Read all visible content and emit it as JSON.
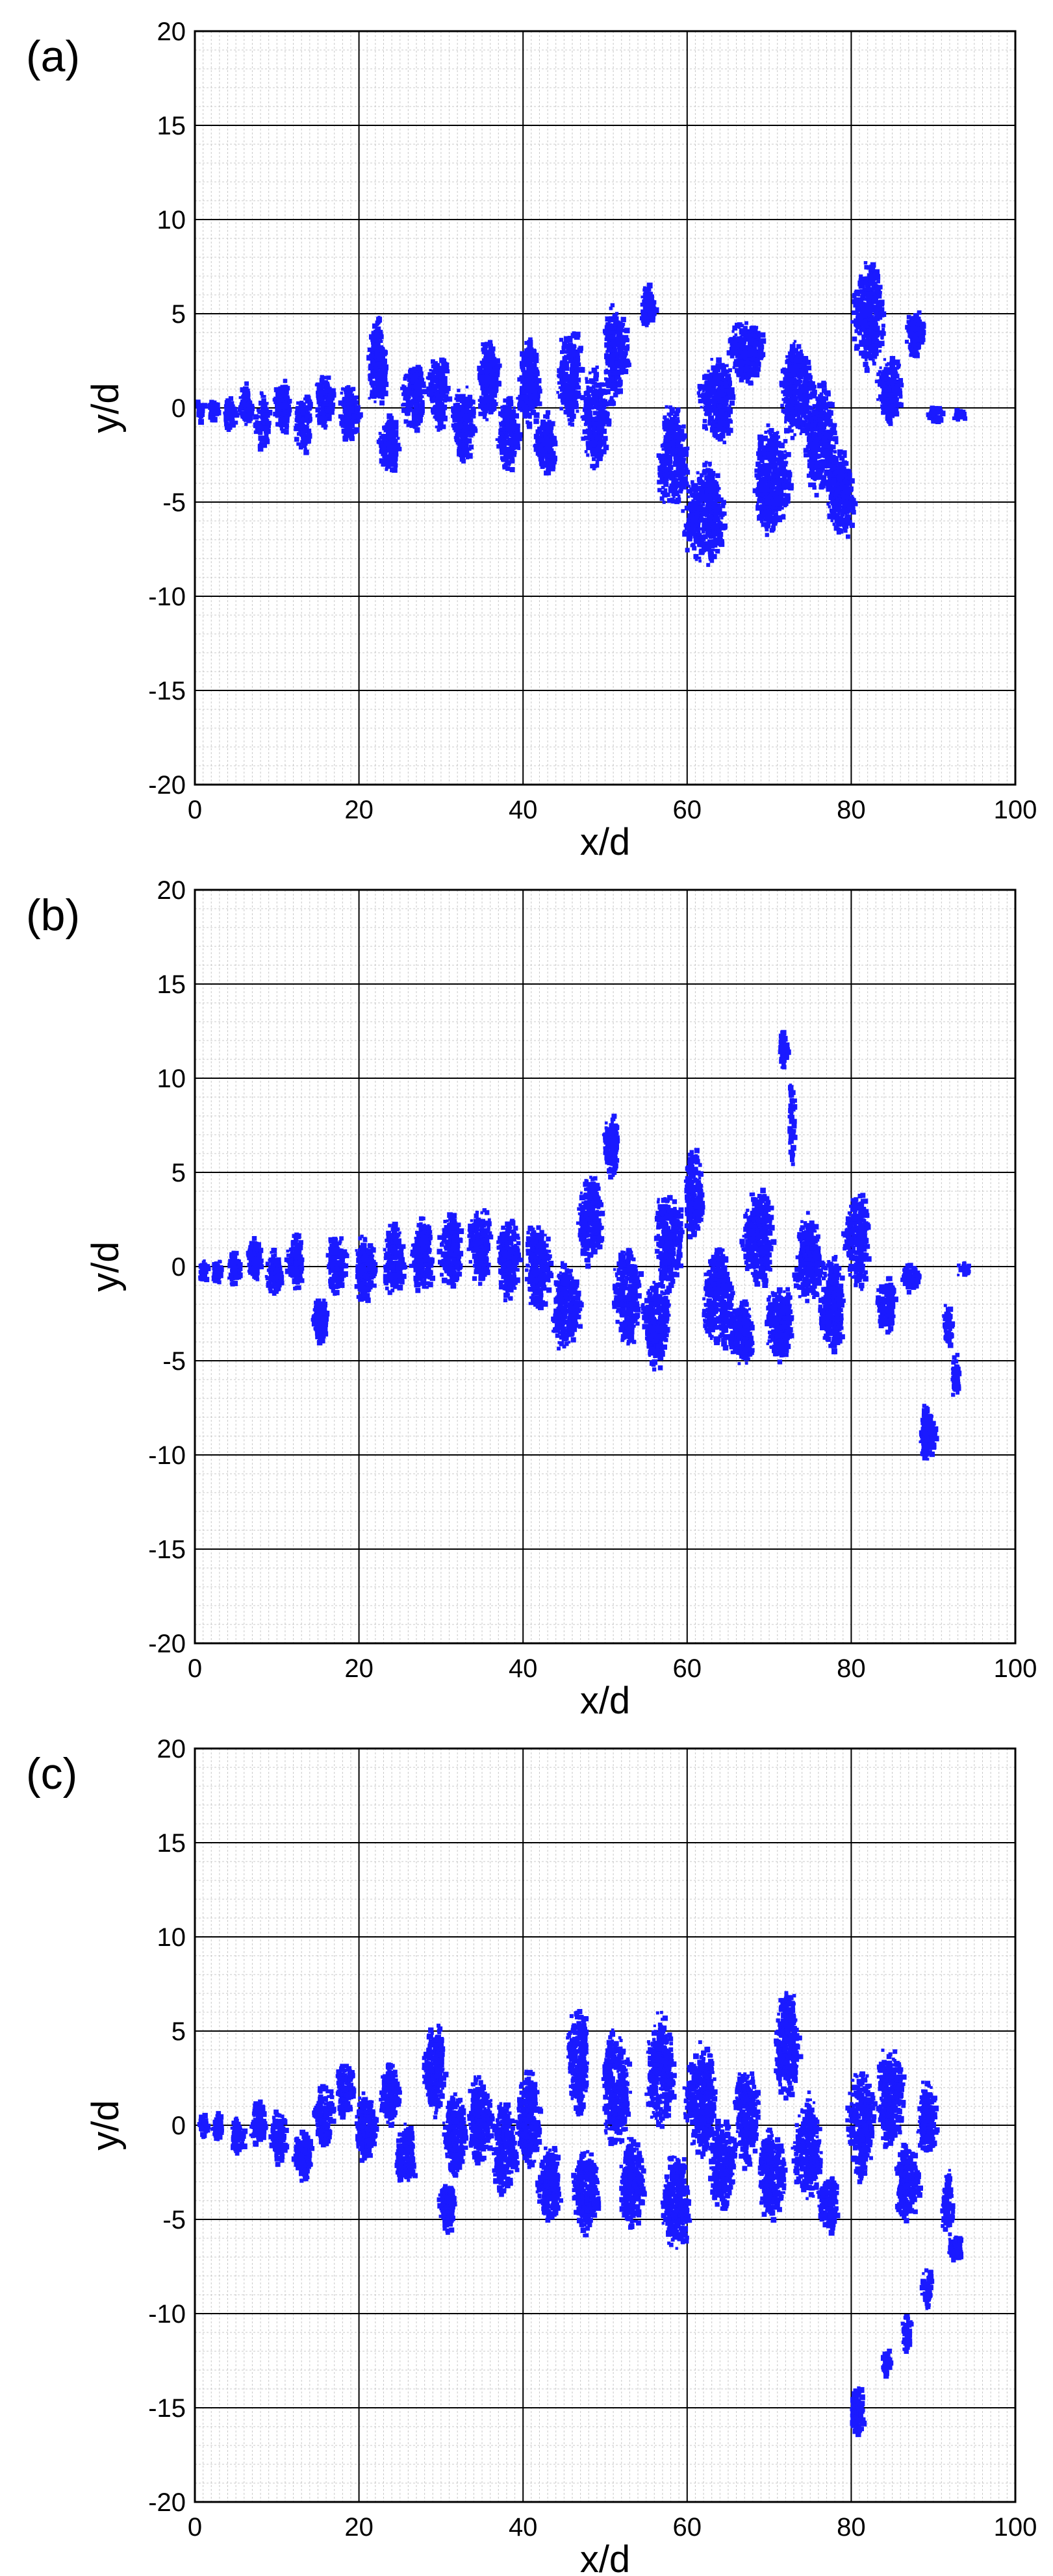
{
  "figure": {
    "panels": [
      {
        "id": "a",
        "label": "(a)",
        "seed": 11
      },
      {
        "id": "b",
        "label": "(b)",
        "seed": 23
      },
      {
        "id": "c",
        "label": "(c)",
        "seed": 37
      }
    ]
  },
  "colors": {
    "particles": "#1a1aff",
    "major_grid": "#000000",
    "minor_grid": "#c8c8c8",
    "frame": "#000000",
    "background": "#ffffff"
  },
  "chart_data": [
    {
      "type": "scatter",
      "panel": "(a)",
      "title": "",
      "xlabel": "x/d",
      "ylabel": "y/d",
      "xlim": [
        0,
        100
      ],
      "ylim": [
        -20,
        20
      ],
      "xticks": [
        0,
        20,
        40,
        60,
        80,
        100
      ],
      "yticks": [
        -20,
        -15,
        -10,
        -5,
        0,
        5,
        10,
        15,
        20
      ],
      "grid": true,
      "legend": "none",
      "clusters": [
        {
          "x": 0.5,
          "y": 0.0,
          "rx": 0.5,
          "ry": 0.7,
          "n": 40
        },
        {
          "x": 2.0,
          "y": 0.0,
          "rx": 0.7,
          "ry": 0.7,
          "n": 60
        },
        {
          "x": 4.0,
          "y": -0.3,
          "rx": 0.8,
          "ry": 1.0,
          "n": 80
        },
        {
          "x": 6.0,
          "y": 0.3,
          "rx": 0.9,
          "ry": 1.2,
          "n": 90
        },
        {
          "x": 8.0,
          "y": -0.6,
          "rx": 1.0,
          "ry": 1.6,
          "n": 110
        },
        {
          "x": 10.5,
          "y": 0.2,
          "rx": 1.0,
          "ry": 1.6,
          "n": 140
        },
        {
          "x": 13.0,
          "y": -0.8,
          "rx": 1.1,
          "ry": 1.7,
          "n": 160
        },
        {
          "x": 15.5,
          "y": 0.4,
          "rx": 1.2,
          "ry": 1.6,
          "n": 170
        },
        {
          "x": 18.5,
          "y": -0.2,
          "rx": 1.3,
          "ry": 1.6,
          "n": 170
        },
        {
          "x": 22.0,
          "y": 2.5,
          "rx": 1.2,
          "ry": 2.6,
          "n": 240
        },
        {
          "x": 23.5,
          "y": -1.8,
          "rx": 1.4,
          "ry": 1.6,
          "n": 200
        },
        {
          "x": 26.5,
          "y": 0.8,
          "rx": 1.5,
          "ry": 2.2,
          "n": 240
        },
        {
          "x": 29.5,
          "y": 1.0,
          "rx": 1.4,
          "ry": 2.2,
          "n": 230
        },
        {
          "x": 32.5,
          "y": -0.8,
          "rx": 1.6,
          "ry": 2.2,
          "n": 270
        },
        {
          "x": 35.5,
          "y": 1.5,
          "rx": 1.4,
          "ry": 2.4,
          "n": 250
        },
        {
          "x": 38.0,
          "y": -1.2,
          "rx": 1.5,
          "ry": 2.2,
          "n": 260
        },
        {
          "x": 40.5,
          "y": 1.5,
          "rx": 1.5,
          "ry": 2.6,
          "n": 280
        },
        {
          "x": 42.5,
          "y": -1.8,
          "rx": 1.3,
          "ry": 1.8,
          "n": 220
        },
        {
          "x": 45.5,
          "y": 1.8,
          "rx": 1.6,
          "ry": 2.8,
          "n": 300
        },
        {
          "x": 48.5,
          "y": -0.5,
          "rx": 1.8,
          "ry": 2.8,
          "n": 320
        },
        {
          "x": 51.0,
          "y": 3.0,
          "rx": 1.6,
          "ry": 2.8,
          "n": 310
        },
        {
          "x": 55.0,
          "y": 5.5,
          "rx": 1.0,
          "ry": 1.2,
          "n": 150
        },
        {
          "x": 58.0,
          "y": -2.5,
          "rx": 2.0,
          "ry": 3.0,
          "n": 380
        },
        {
          "x": 62.0,
          "y": -5.5,
          "rx": 2.8,
          "ry": 3.0,
          "n": 560
        },
        {
          "x": 63.5,
          "y": 0.5,
          "rx": 2.2,
          "ry": 2.5,
          "n": 380
        },
        {
          "x": 67.0,
          "y": 3.0,
          "rx": 2.2,
          "ry": 1.8,
          "n": 360
        },
        {
          "x": 70.0,
          "y": -3.8,
          "rx": 2.4,
          "ry": 3.2,
          "n": 520
        },
        {
          "x": 73.0,
          "y": 1.0,
          "rx": 2.2,
          "ry": 2.8,
          "n": 430
        },
        {
          "x": 76.0,
          "y": -1.5,
          "rx": 2.0,
          "ry": 3.2,
          "n": 430
        },
        {
          "x": 78.5,
          "y": -4.5,
          "rx": 1.8,
          "ry": 2.5,
          "n": 330
        },
        {
          "x": 82.0,
          "y": 5.0,
          "rx": 2.0,
          "ry": 3.2,
          "n": 400
        },
        {
          "x": 84.5,
          "y": 1.0,
          "rx": 1.6,
          "ry": 2.0,
          "n": 260
        },
        {
          "x": 87.5,
          "y": 4.0,
          "rx": 1.2,
          "ry": 1.4,
          "n": 170
        },
        {
          "x": 90.0,
          "y": -0.2,
          "rx": 1.0,
          "ry": 0.5,
          "n": 40
        },
        {
          "x": 93.0,
          "y": -0.3,
          "rx": 1.0,
          "ry": 0.4,
          "n": 20
        }
      ]
    },
    {
      "type": "scatter",
      "panel": "(b)",
      "title": "",
      "xlabel": "x/d",
      "ylabel": "y/d",
      "xlim": [
        0,
        100
      ],
      "ylim": [
        -20,
        20
      ],
      "xticks": [
        0,
        20,
        40,
        60,
        80,
        100
      ],
      "yticks": [
        -20,
        -15,
        -10,
        -5,
        0,
        5,
        10,
        15,
        20
      ],
      "grid": true,
      "legend": "none",
      "clusters": [
        {
          "x": 0.8,
          "y": -0.2,
          "rx": 0.6,
          "ry": 0.7,
          "n": 40
        },
        {
          "x": 2.5,
          "y": -0.2,
          "rx": 0.7,
          "ry": 0.8,
          "n": 60
        },
        {
          "x": 4.5,
          "y": 0.0,
          "rx": 0.8,
          "ry": 1.0,
          "n": 80
        },
        {
          "x": 7.0,
          "y": 0.5,
          "rx": 0.9,
          "ry": 1.3,
          "n": 110
        },
        {
          "x": 9.5,
          "y": -0.3,
          "rx": 1.0,
          "ry": 1.4,
          "n": 130
        },
        {
          "x": 12.0,
          "y": 0.3,
          "rx": 1.1,
          "ry": 1.6,
          "n": 150
        },
        {
          "x": 15.0,
          "y": -2.8,
          "rx": 1.1,
          "ry": 1.3,
          "n": 160
        },
        {
          "x": 17.0,
          "y": 0.2,
          "rx": 1.2,
          "ry": 1.8,
          "n": 170
        },
        {
          "x": 20.5,
          "y": 0.0,
          "rx": 1.3,
          "ry": 2.0,
          "n": 200
        },
        {
          "x": 24.0,
          "y": 0.5,
          "rx": 1.4,
          "ry": 2.0,
          "n": 220
        },
        {
          "x": 27.5,
          "y": 0.8,
          "rx": 1.4,
          "ry": 2.2,
          "n": 240
        },
        {
          "x": 31.0,
          "y": 1.0,
          "rx": 1.5,
          "ry": 2.2,
          "n": 250
        },
        {
          "x": 34.5,
          "y": 1.2,
          "rx": 1.5,
          "ry": 2.2,
          "n": 250
        },
        {
          "x": 38.0,
          "y": 0.5,
          "rx": 1.5,
          "ry": 2.4,
          "n": 260
        },
        {
          "x": 41.5,
          "y": 0.2,
          "rx": 1.6,
          "ry": 2.6,
          "n": 290
        },
        {
          "x": 45.0,
          "y": -2.0,
          "rx": 1.8,
          "ry": 2.6,
          "n": 320
        },
        {
          "x": 48.0,
          "y": 2.5,
          "rx": 1.6,
          "ry": 2.6,
          "n": 300
        },
        {
          "x": 50.5,
          "y": 6.5,
          "rx": 1.0,
          "ry": 1.8,
          "n": 180
        },
        {
          "x": 52.5,
          "y": -1.5,
          "rx": 1.8,
          "ry": 2.8,
          "n": 340
        },
        {
          "x": 56.0,
          "y": -3.0,
          "rx": 1.8,
          "ry": 2.5,
          "n": 320
        },
        {
          "x": 57.5,
          "y": 1.5,
          "rx": 1.8,
          "ry": 2.8,
          "n": 330
        },
        {
          "x": 60.5,
          "y": 4.0,
          "rx": 1.2,
          "ry": 2.6,
          "n": 260
        },
        {
          "x": 63.5,
          "y": -1.5,
          "rx": 2.0,
          "ry": 3.0,
          "n": 400
        },
        {
          "x": 66.5,
          "y": -3.5,
          "rx": 1.6,
          "ry": 1.8,
          "n": 260
        },
        {
          "x": 68.5,
          "y": 1.5,
          "rx": 2.0,
          "ry": 3.0,
          "n": 400
        },
        {
          "x": 71.0,
          "y": -3.0,
          "rx": 1.8,
          "ry": 2.2,
          "n": 320
        },
        {
          "x": 71.5,
          "y": 11.5,
          "rx": 0.6,
          "ry": 1.2,
          "n": 80
        },
        {
          "x": 72.5,
          "y": 8.0,
          "rx": 0.4,
          "ry": 2.8,
          "n": 60
        },
        {
          "x": 74.5,
          "y": 0.5,
          "rx": 1.8,
          "ry": 2.5,
          "n": 330
        },
        {
          "x": 77.5,
          "y": -2.0,
          "rx": 1.6,
          "ry": 2.8,
          "n": 320
        },
        {
          "x": 80.5,
          "y": 1.5,
          "rx": 1.6,
          "ry": 2.8,
          "n": 300
        },
        {
          "x": 84.0,
          "y": -2.0,
          "rx": 1.3,
          "ry": 1.6,
          "n": 160
        },
        {
          "x": 87.0,
          "y": -0.5,
          "rx": 1.3,
          "ry": 0.8,
          "n": 80
        },
        {
          "x": 89.0,
          "y": -8.8,
          "rx": 1.0,
          "ry": 1.6,
          "n": 190
        },
        {
          "x": 91.5,
          "y": -3.0,
          "rx": 0.6,
          "ry": 1.2,
          "n": 60
        },
        {
          "x": 92.5,
          "y": -5.8,
          "rx": 0.5,
          "ry": 1.4,
          "n": 50
        },
        {
          "x": 93.5,
          "y": 0.0,
          "rx": 1.0,
          "ry": 0.5,
          "n": 30
        }
      ]
    },
    {
      "type": "scatter",
      "panel": "(c)",
      "title": "",
      "xlabel": "x/d",
      "ylabel": "y/d",
      "xlim": [
        0,
        100
      ],
      "ylim": [
        -20,
        20
      ],
      "xticks": [
        0,
        20,
        40,
        60,
        80,
        100
      ],
      "yticks": [
        -20,
        -15,
        -10,
        -5,
        0,
        5,
        10,
        15,
        20
      ],
      "grid": true,
      "legend": "none",
      "clusters": [
        {
          "x": 0.8,
          "y": 0.0,
          "rx": 0.6,
          "ry": 0.8,
          "n": 40
        },
        {
          "x": 2.5,
          "y": 0.0,
          "rx": 0.7,
          "ry": 0.8,
          "n": 60
        },
        {
          "x": 5.0,
          "y": -0.5,
          "rx": 0.9,
          "ry": 1.1,
          "n": 90
        },
        {
          "x": 7.5,
          "y": 0.3,
          "rx": 1.0,
          "ry": 1.4,
          "n": 120
        },
        {
          "x": 10.0,
          "y": -0.5,
          "rx": 1.1,
          "ry": 1.6,
          "n": 140
        },
        {
          "x": 13.0,
          "y": -1.5,
          "rx": 1.2,
          "ry": 1.6,
          "n": 160
        },
        {
          "x": 15.5,
          "y": 0.5,
          "rx": 1.3,
          "ry": 1.8,
          "n": 190
        },
        {
          "x": 18.0,
          "y": 2.0,
          "rx": 1.2,
          "ry": 1.6,
          "n": 180
        },
        {
          "x": 20.5,
          "y": 0.0,
          "rx": 1.4,
          "ry": 2.0,
          "n": 220
        },
        {
          "x": 23.5,
          "y": 1.8,
          "rx": 1.3,
          "ry": 1.8,
          "n": 200
        },
        {
          "x": 25.5,
          "y": -1.5,
          "rx": 1.3,
          "ry": 1.8,
          "n": 200
        },
        {
          "x": 29.0,
          "y": 3.0,
          "rx": 1.4,
          "ry": 2.6,
          "n": 260
        },
        {
          "x": 30.5,
          "y": -4.2,
          "rx": 1.0,
          "ry": 1.5,
          "n": 150
        },
        {
          "x": 31.5,
          "y": -0.5,
          "rx": 1.6,
          "ry": 2.4,
          "n": 280
        },
        {
          "x": 34.5,
          "y": 0.5,
          "rx": 1.6,
          "ry": 2.6,
          "n": 290
        },
        {
          "x": 37.5,
          "y": -1.0,
          "rx": 1.6,
          "ry": 2.8,
          "n": 310
        },
        {
          "x": 40.5,
          "y": 0.5,
          "rx": 1.6,
          "ry": 2.8,
          "n": 310
        },
        {
          "x": 43.0,
          "y": -3.0,
          "rx": 1.6,
          "ry": 2.2,
          "n": 280
        },
        {
          "x": 46.5,
          "y": 3.5,
          "rx": 1.4,
          "ry": 3.2,
          "n": 310
        },
        {
          "x": 47.5,
          "y": -3.5,
          "rx": 1.8,
          "ry": 2.4,
          "n": 320
        },
        {
          "x": 51.0,
          "y": 2.0,
          "rx": 1.8,
          "ry": 3.4,
          "n": 380
        },
        {
          "x": 53.0,
          "y": -3.0,
          "rx": 1.6,
          "ry": 2.5,
          "n": 300
        },
        {
          "x": 56.5,
          "y": 3.0,
          "rx": 1.8,
          "ry": 3.2,
          "n": 390
        },
        {
          "x": 58.5,
          "y": -4.0,
          "rx": 1.8,
          "ry": 3.0,
          "n": 380
        },
        {
          "x": 61.5,
          "y": 1.5,
          "rx": 2.0,
          "ry": 3.2,
          "n": 420
        },
        {
          "x": 64.0,
          "y": -2.0,
          "rx": 1.8,
          "ry": 2.6,
          "n": 330
        },
        {
          "x": 67.0,
          "y": 0.5,
          "rx": 1.6,
          "ry": 2.8,
          "n": 300
        },
        {
          "x": 70.0,
          "y": -2.5,
          "rx": 1.8,
          "ry": 2.6,
          "n": 330
        },
        {
          "x": 72.0,
          "y": 4.5,
          "rx": 1.6,
          "ry": 3.2,
          "n": 380
        },
        {
          "x": 74.5,
          "y": -1.0,
          "rx": 1.8,
          "ry": 3.0,
          "n": 360
        },
        {
          "x": 77.0,
          "y": -4.0,
          "rx": 1.4,
          "ry": 1.8,
          "n": 200
        },
        {
          "x": 81.0,
          "y": 0.0,
          "rx": 1.8,
          "ry": 3.2,
          "n": 360
        },
        {
          "x": 84.5,
          "y": 1.5,
          "rx": 1.8,
          "ry": 3.0,
          "n": 350
        },
        {
          "x": 86.5,
          "y": -3.0,
          "rx": 1.6,
          "ry": 2.2,
          "n": 270
        },
        {
          "x": 89.0,
          "y": 0.5,
          "rx": 1.2,
          "ry": 2.2,
          "n": 190
        },
        {
          "x": 91.5,
          "y": -4.0,
          "rx": 0.8,
          "ry": 2.0,
          "n": 100
        },
        {
          "x": 92.5,
          "y": -6.5,
          "rx": 1.0,
          "ry": 0.8,
          "n": 80
        },
        {
          "x": 89.0,
          "y": -8.5,
          "rx": 0.8,
          "ry": 1.2,
          "n": 60
        },
        {
          "x": 86.5,
          "y": -11.0,
          "rx": 0.6,
          "ry": 1.2,
          "n": 50
        },
        {
          "x": 84.0,
          "y": -12.5,
          "rx": 0.6,
          "ry": 0.8,
          "n": 40
        },
        {
          "x": 80.5,
          "y": -15.0,
          "rx": 0.9,
          "ry": 1.4,
          "n": 160
        }
      ]
    }
  ]
}
